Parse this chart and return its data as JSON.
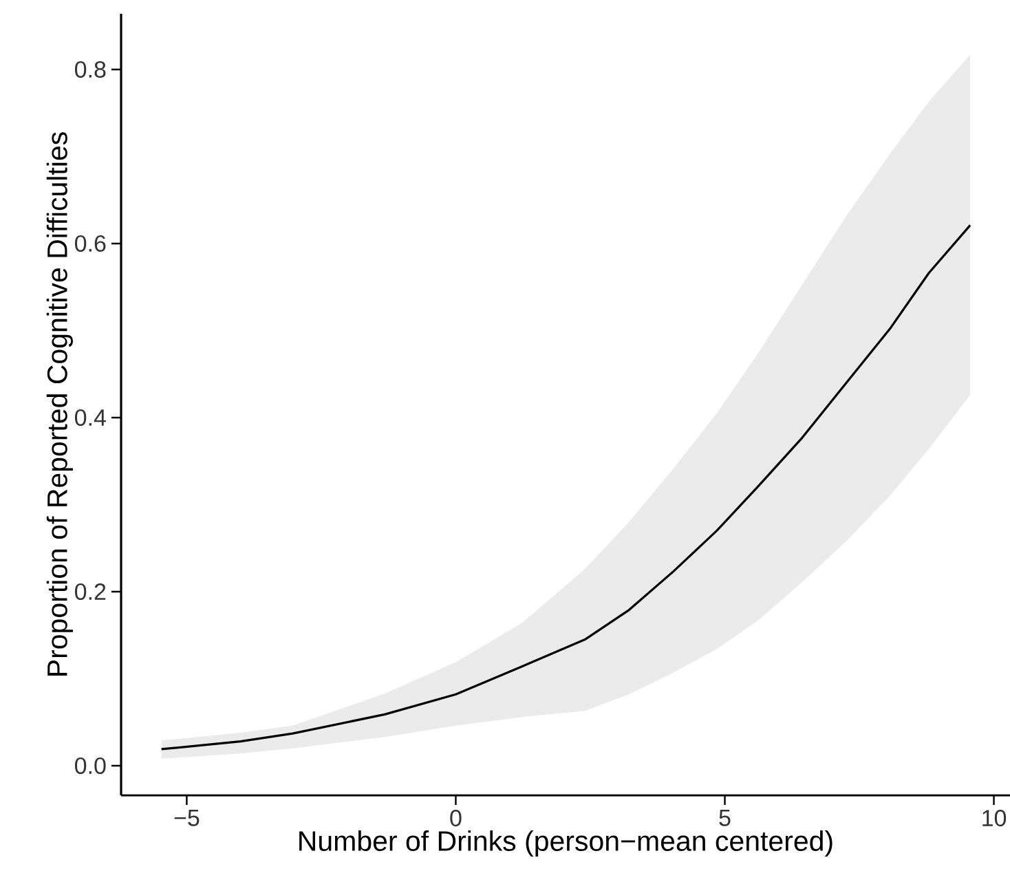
{
  "chart_data": {
    "type": "line",
    "xlabel": "Number of Drinks (person−mean centered)",
    "ylabel": "Proportion of Reported Cognitive Difficulties",
    "x": [
      -5.47,
      -4,
      -3.03,
      -1.32,
      0,
      1.23,
      2.4,
      3.22,
      4.04,
      4.85,
      5.62,
      6.44,
      7.26,
      8.08,
      8.79,
      9.56
    ],
    "series": [
      {
        "color": "#000000",
        "values": [
          0.019,
          0.028,
          0.037,
          0.059,
          0.082,
          0.114,
          0.145,
          0.179,
          0.223,
          0.27,
          0.321,
          0.377,
          0.44,
          0.503,
          0.566,
          0.621
        ],
        "lower": [
          0.008,
          0.014,
          0.02,
          0.033,
          0.046,
          0.056,
          0.063,
          0.082,
          0.107,
          0.134,
          0.167,
          0.211,
          0.258,
          0.311,
          0.364,
          0.426
        ],
        "upper": [
          0.029,
          0.038,
          0.046,
          0.083,
          0.119,
          0.164,
          0.226,
          0.28,
          0.341,
          0.405,
          0.474,
          0.553,
          0.632,
          0.704,
          0.763,
          0.817
        ]
      }
    ],
    "xlim": [
      -6.22,
      10.3
    ],
    "ylim": [
      -0.034,
      0.864
    ],
    "xticks": [
      {
        "value": -5,
        "label": "−5"
      },
      0,
      5,
      10
    ],
    "yticks": [
      {
        "value": 0,
        "label": "0.0"
      },
      {
        "value": 0.2,
        "label": "0.2"
      },
      {
        "value": 0.4,
        "label": "0.4"
      },
      {
        "value": 0.6,
        "label": "0.6"
      },
      {
        "value": 0.8,
        "label": "0.8"
      }
    ],
    "marker": "none",
    "line_style": "solid"
  }
}
